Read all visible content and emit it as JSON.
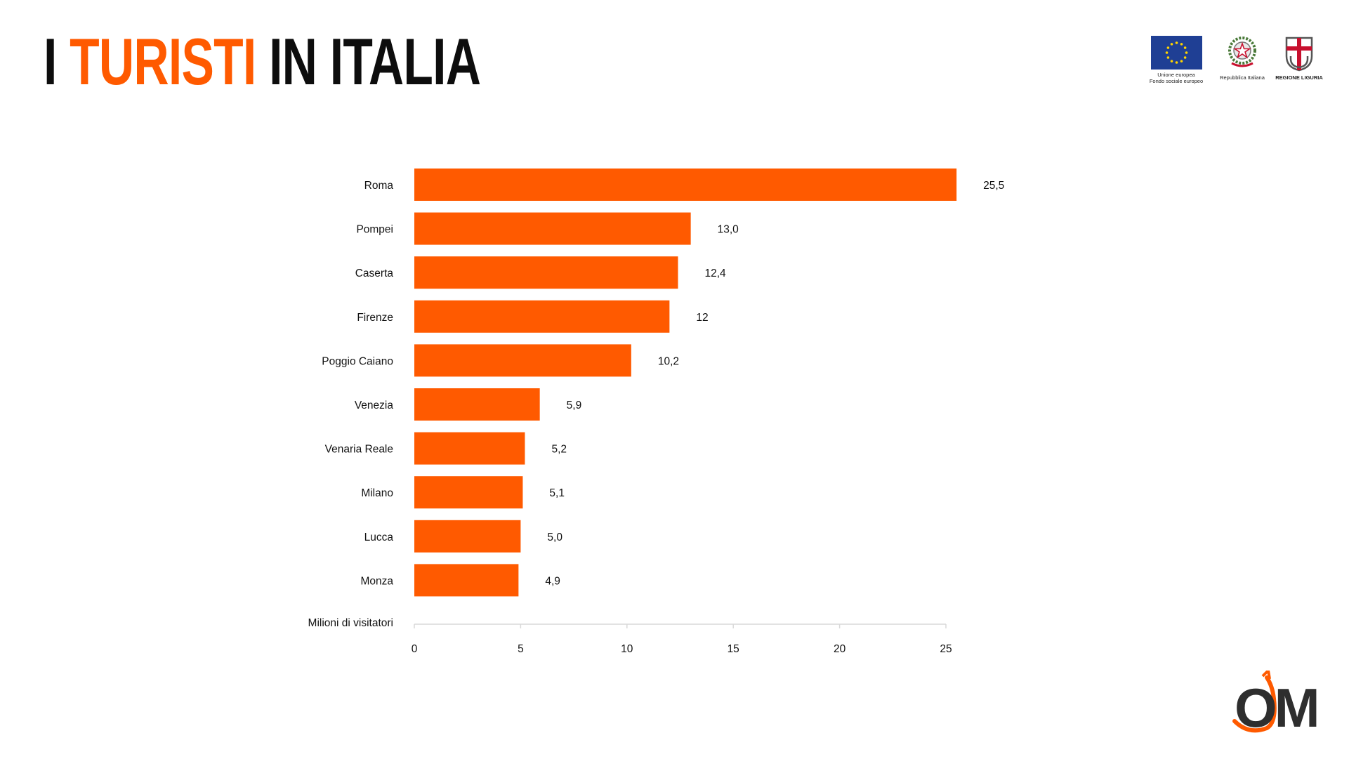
{
  "header": {
    "title_part1": "I ",
    "title_part2": "TURISTI",
    "title_part3": " IN ITALIA"
  },
  "logos": [
    {
      "name": "eu-flag",
      "caption_line1": "Unione europea",
      "caption_line2": "Fondo sociale europeo"
    },
    {
      "name": "italian-republic-emblem",
      "caption_line1": "Repubblica Italiana"
    },
    {
      "name": "regione-liguria-emblem",
      "caption_line1": "REGIONE LIGURIA"
    }
  ],
  "brand": {
    "logo_text": "OM",
    "accent_color": "#ff5a00",
    "dark_color": "#2e2e2e"
  },
  "chart_data": {
    "type": "bar",
    "orientation": "horizontal",
    "categories": [
      "Roma",
      "Pompei",
      "Caserta",
      "Firenze",
      "Poggio Caiano",
      "Venezia",
      "Venaria Reale",
      "Milano",
      "Lucca",
      "Monza"
    ],
    "values": [
      25.5,
      13.0,
      12.4,
      12,
      10.2,
      5.9,
      5.2,
      5.1,
      5.0,
      4.9
    ],
    "value_labels": [
      "25,5",
      "13,0",
      "12,4",
      "12",
      "10,2",
      "5,9",
      "5,2",
      "5,1",
      "5,0",
      "4,9"
    ],
    "axis_title": "Milioni di visitatori",
    "xlim": [
      0,
      25
    ],
    "xticks": [
      0,
      5,
      10,
      15,
      20,
      25
    ],
    "bar_color": "#ff5a00",
    "grid": false,
    "legend": "none"
  }
}
